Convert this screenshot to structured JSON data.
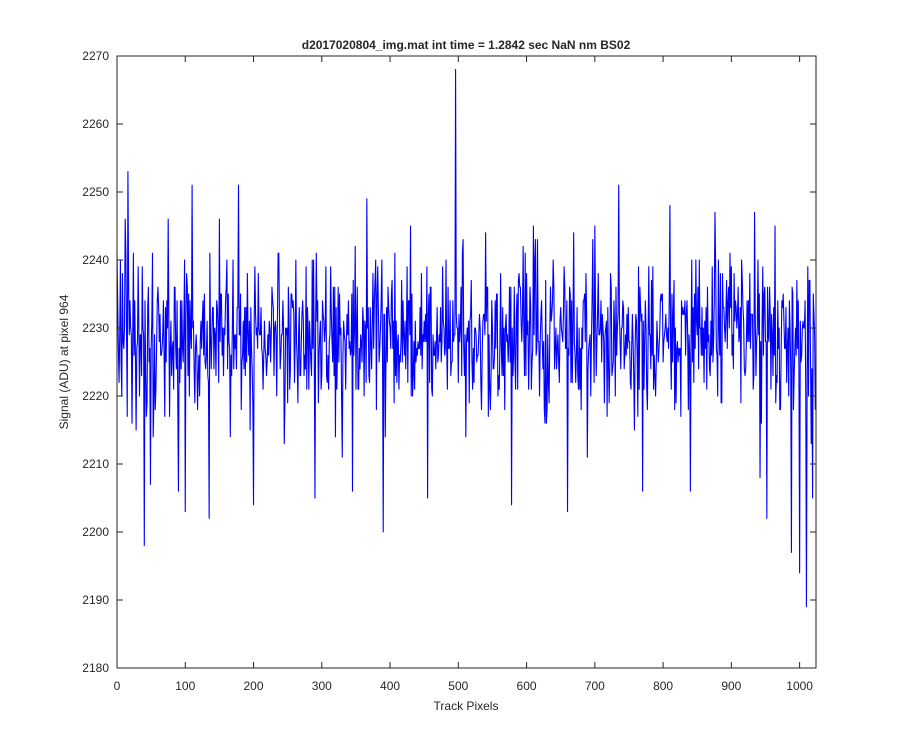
{
  "chart_data": {
    "type": "line",
    "title": "d2017020804_img.mat int time = 1.2842 sec  NaN nm BS02",
    "xlabel": "Track Pixels",
    "ylabel": "Signal (ADU) at pixel 964",
    "xlim": [
      0,
      1024
    ],
    "ylim": [
      2180,
      2270
    ],
    "xticks": [
      0,
      100,
      200,
      300,
      400,
      500,
      600,
      700,
      800,
      900,
      1000
    ],
    "yticks": [
      2180,
      2190,
      2200,
      2210,
      2220,
      2230,
      2240,
      2250,
      2260,
      2270
    ],
    "grid": false,
    "box": true,
    "series": [
      {
        "color": "#0000ff",
        "x_start": 0,
        "x_step": 1,
        "values": []
      }
    ]
  }
}
